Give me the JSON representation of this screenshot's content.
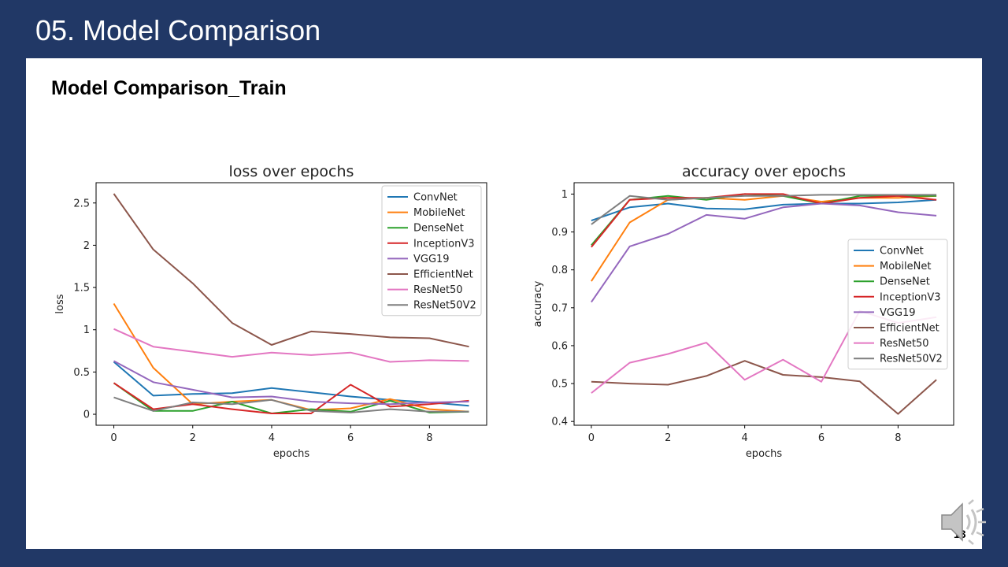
{
  "slide": {
    "title": "05. Model Comparison",
    "section_heading": "Model Comparison_Train",
    "page_number": "13"
  },
  "colors": {
    "background": "#213866",
    "panel": "#ffffff"
  },
  "icons": {
    "audio": "speaker-icon"
  },
  "chart_data": [
    {
      "type": "line",
      "title": "loss over epochs",
      "xlabel": "epochs",
      "ylabel": "loss",
      "x": [
        0,
        1,
        2,
        3,
        4,
        5,
        6,
        7,
        8,
        9
      ],
      "xlim": [
        -0.45,
        9.45
      ],
      "ylim": [
        -0.13,
        2.74
      ],
      "xticks": [
        0,
        2,
        4,
        6,
        8
      ],
      "yticks": [
        0.0,
        0.5,
        1.0,
        1.5,
        2.0,
        2.5
      ],
      "legend_position": "upper right",
      "series": [
        {
          "name": "ConvNet",
          "color": "#1f77b4",
          "values": [
            0.62,
            0.22,
            0.24,
            0.25,
            0.31,
            0.26,
            0.21,
            0.17,
            0.14,
            0.1
          ]
        },
        {
          "name": "MobileNet",
          "color": "#ff7f0e",
          "values": [
            1.31,
            0.55,
            0.12,
            0.15,
            0.17,
            0.05,
            0.07,
            0.18,
            0.06,
            0.03
          ]
        },
        {
          "name": "DenseNet",
          "color": "#2ca02c",
          "values": [
            0.37,
            0.04,
            0.04,
            0.15,
            0.01,
            0.06,
            0.03,
            0.16,
            0.02,
            0.03
          ]
        },
        {
          "name": "InceptionV3",
          "color": "#d62728",
          "values": [
            0.37,
            0.06,
            0.12,
            0.06,
            0.01,
            0.01,
            0.35,
            0.09,
            0.12,
            0.16
          ]
        },
        {
          "name": "VGG19",
          "color": "#9467bd",
          "values": [
            0.63,
            0.38,
            0.29,
            0.2,
            0.21,
            0.15,
            0.13,
            0.12,
            0.14,
            0.15
          ]
        },
        {
          "name": "EfficientNet",
          "color": "#8c564b",
          "values": [
            2.61,
            1.95,
            1.55,
            1.08,
            0.82,
            0.98,
            0.95,
            0.91,
            0.9,
            0.8
          ]
        },
        {
          "name": "ResNet50",
          "color": "#e377c2",
          "values": [
            1.01,
            0.8,
            0.74,
            0.68,
            0.73,
            0.7,
            0.73,
            0.62,
            0.64,
            0.63
          ]
        },
        {
          "name": "ResNet50V2",
          "color": "#7f7f7f",
          "values": [
            0.2,
            0.04,
            0.14,
            0.12,
            0.17,
            0.04,
            0.02,
            0.06,
            0.03,
            0.03
          ]
        }
      ]
    },
    {
      "type": "line",
      "title": "accuracy over epochs",
      "xlabel": "epochs",
      "ylabel": "accuracy",
      "x": [
        0,
        1,
        2,
        3,
        4,
        5,
        6,
        7,
        8,
        9
      ],
      "xlim": [
        -0.45,
        9.45
      ],
      "ylim": [
        0.39,
        1.03
      ],
      "xticks": [
        0,
        2,
        4,
        6,
        8
      ],
      "yticks": [
        0.4,
        0.5,
        0.6,
        0.7,
        0.8,
        0.9,
        1.0
      ],
      "legend_position": "center right",
      "series": [
        {
          "name": "ConvNet",
          "color": "#1f77b4",
          "values": [
            0.93,
            0.965,
            0.975,
            0.962,
            0.96,
            0.972,
            0.975,
            0.975,
            0.978,
            0.985
          ]
        },
        {
          "name": "MobileNet",
          "color": "#ff7f0e",
          "values": [
            0.77,
            0.925,
            0.985,
            0.99,
            0.985,
            0.995,
            0.98,
            0.99,
            0.99,
            0.995
          ]
        },
        {
          "name": "DenseNet",
          "color": "#2ca02c",
          "values": [
            0.865,
            0.985,
            0.995,
            0.985,
            1.0,
            0.995,
            0.975,
            0.995,
            0.995,
            0.995
          ]
        },
        {
          "name": "InceptionV3",
          "color": "#d62728",
          "values": [
            0.86,
            0.985,
            0.99,
            0.99,
            1.0,
            1.0,
            0.975,
            0.99,
            0.995,
            0.985
          ]
        },
        {
          "name": "VGG19",
          "color": "#9467bd",
          "values": [
            0.715,
            0.862,
            0.895,
            0.945,
            0.935,
            0.965,
            0.975,
            0.97,
            0.952,
            0.943
          ]
        },
        {
          "name": "EfficientNet",
          "color": "#8c564b",
          "values": [
            0.505,
            0.5,
            0.497,
            0.52,
            0.56,
            0.523,
            0.517,
            0.506,
            0.42,
            0.51
          ]
        },
        {
          "name": "ResNet50",
          "color": "#e377c2",
          "values": [
            0.475,
            0.555,
            0.578,
            0.608,
            0.51,
            0.563,
            0.505,
            0.692,
            0.66,
            0.675
          ]
        },
        {
          "name": "ResNet50V2",
          "color": "#7f7f7f",
          "values": [
            0.92,
            0.995,
            0.985,
            0.99,
            0.995,
            0.995,
            0.998,
            0.998,
            0.998,
            0.998
          ]
        }
      ]
    }
  ]
}
